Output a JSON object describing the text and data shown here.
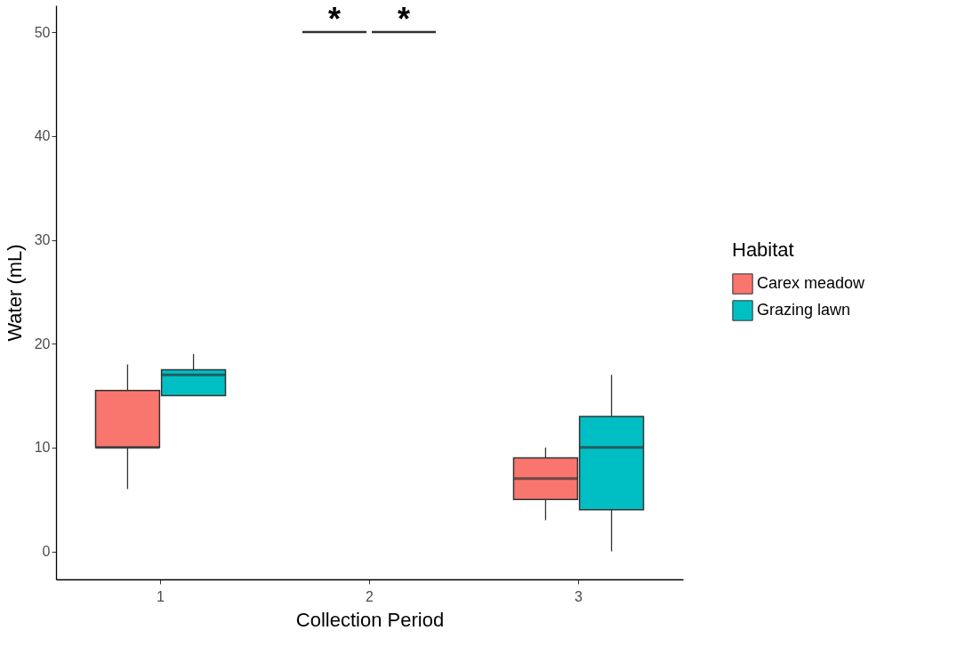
{
  "chart_data": {
    "type": "box",
    "xlabel": "Collection Period",
    "ylabel": "Water (mL)",
    "legend_title": "Habitat",
    "legend": "right",
    "grid": false,
    "categories": [
      "1",
      "2",
      "3"
    ],
    "ylim": [
      -2.7,
      52.6
    ],
    "yticks": [
      0,
      10,
      20,
      30,
      40,
      50
    ],
    "series": [
      {
        "name": "Carex meadow",
        "color": "#f8766d",
        "boxes": [
          {
            "low": 6,
            "q1": 10,
            "median": 10,
            "q3": 15.5,
            "high": 18
          },
          null,
          {
            "low": 3,
            "q1": 5,
            "median": 7,
            "q3": 9,
            "high": 10
          }
        ]
      },
      {
        "name": "Grazing lawn",
        "color": "#00bfc4",
        "boxes": [
          {
            "low": 15,
            "q1": 15,
            "median": 17,
            "q3": 17.5,
            "high": 19
          },
          null,
          {
            "low": 0,
            "q1": 4,
            "median": 10,
            "q3": 13,
            "high": 17
          }
        ]
      }
    ],
    "annotations": [
      "*",
      "*"
    ]
  }
}
